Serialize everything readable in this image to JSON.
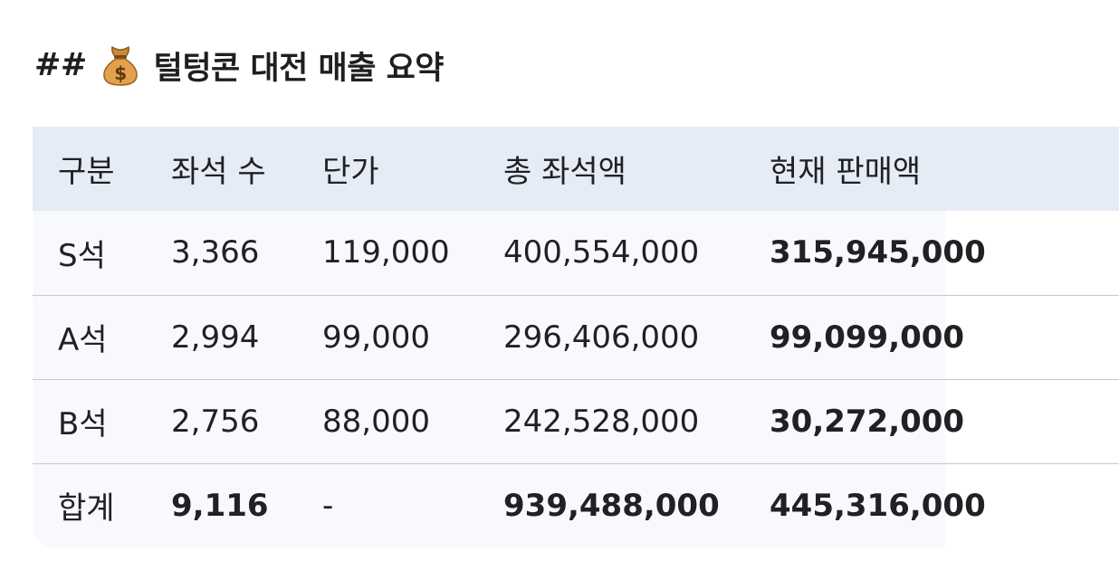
{
  "heading": {
    "hashes": "##",
    "icon": "money-bag-icon",
    "title": "털텅콘 대전 매출 요약"
  },
  "table": {
    "headers": [
      "구분",
      "좌석 수",
      "단가",
      "총 좌석액",
      "현재 판매액"
    ],
    "rows": [
      [
        "S석",
        "3,366",
        "119,000",
        "400,554,000",
        "315,945,000"
      ],
      [
        "A석",
        "2,994",
        "99,000",
        "296,406,000",
        "99,099,000"
      ],
      [
        "B석",
        "2,756",
        "88,000",
        "242,528,000",
        "30,272,000"
      ],
      [
        "합계",
        "9,116",
        "-",
        "939,488,000",
        "445,316,000"
      ]
    ]
  }
}
